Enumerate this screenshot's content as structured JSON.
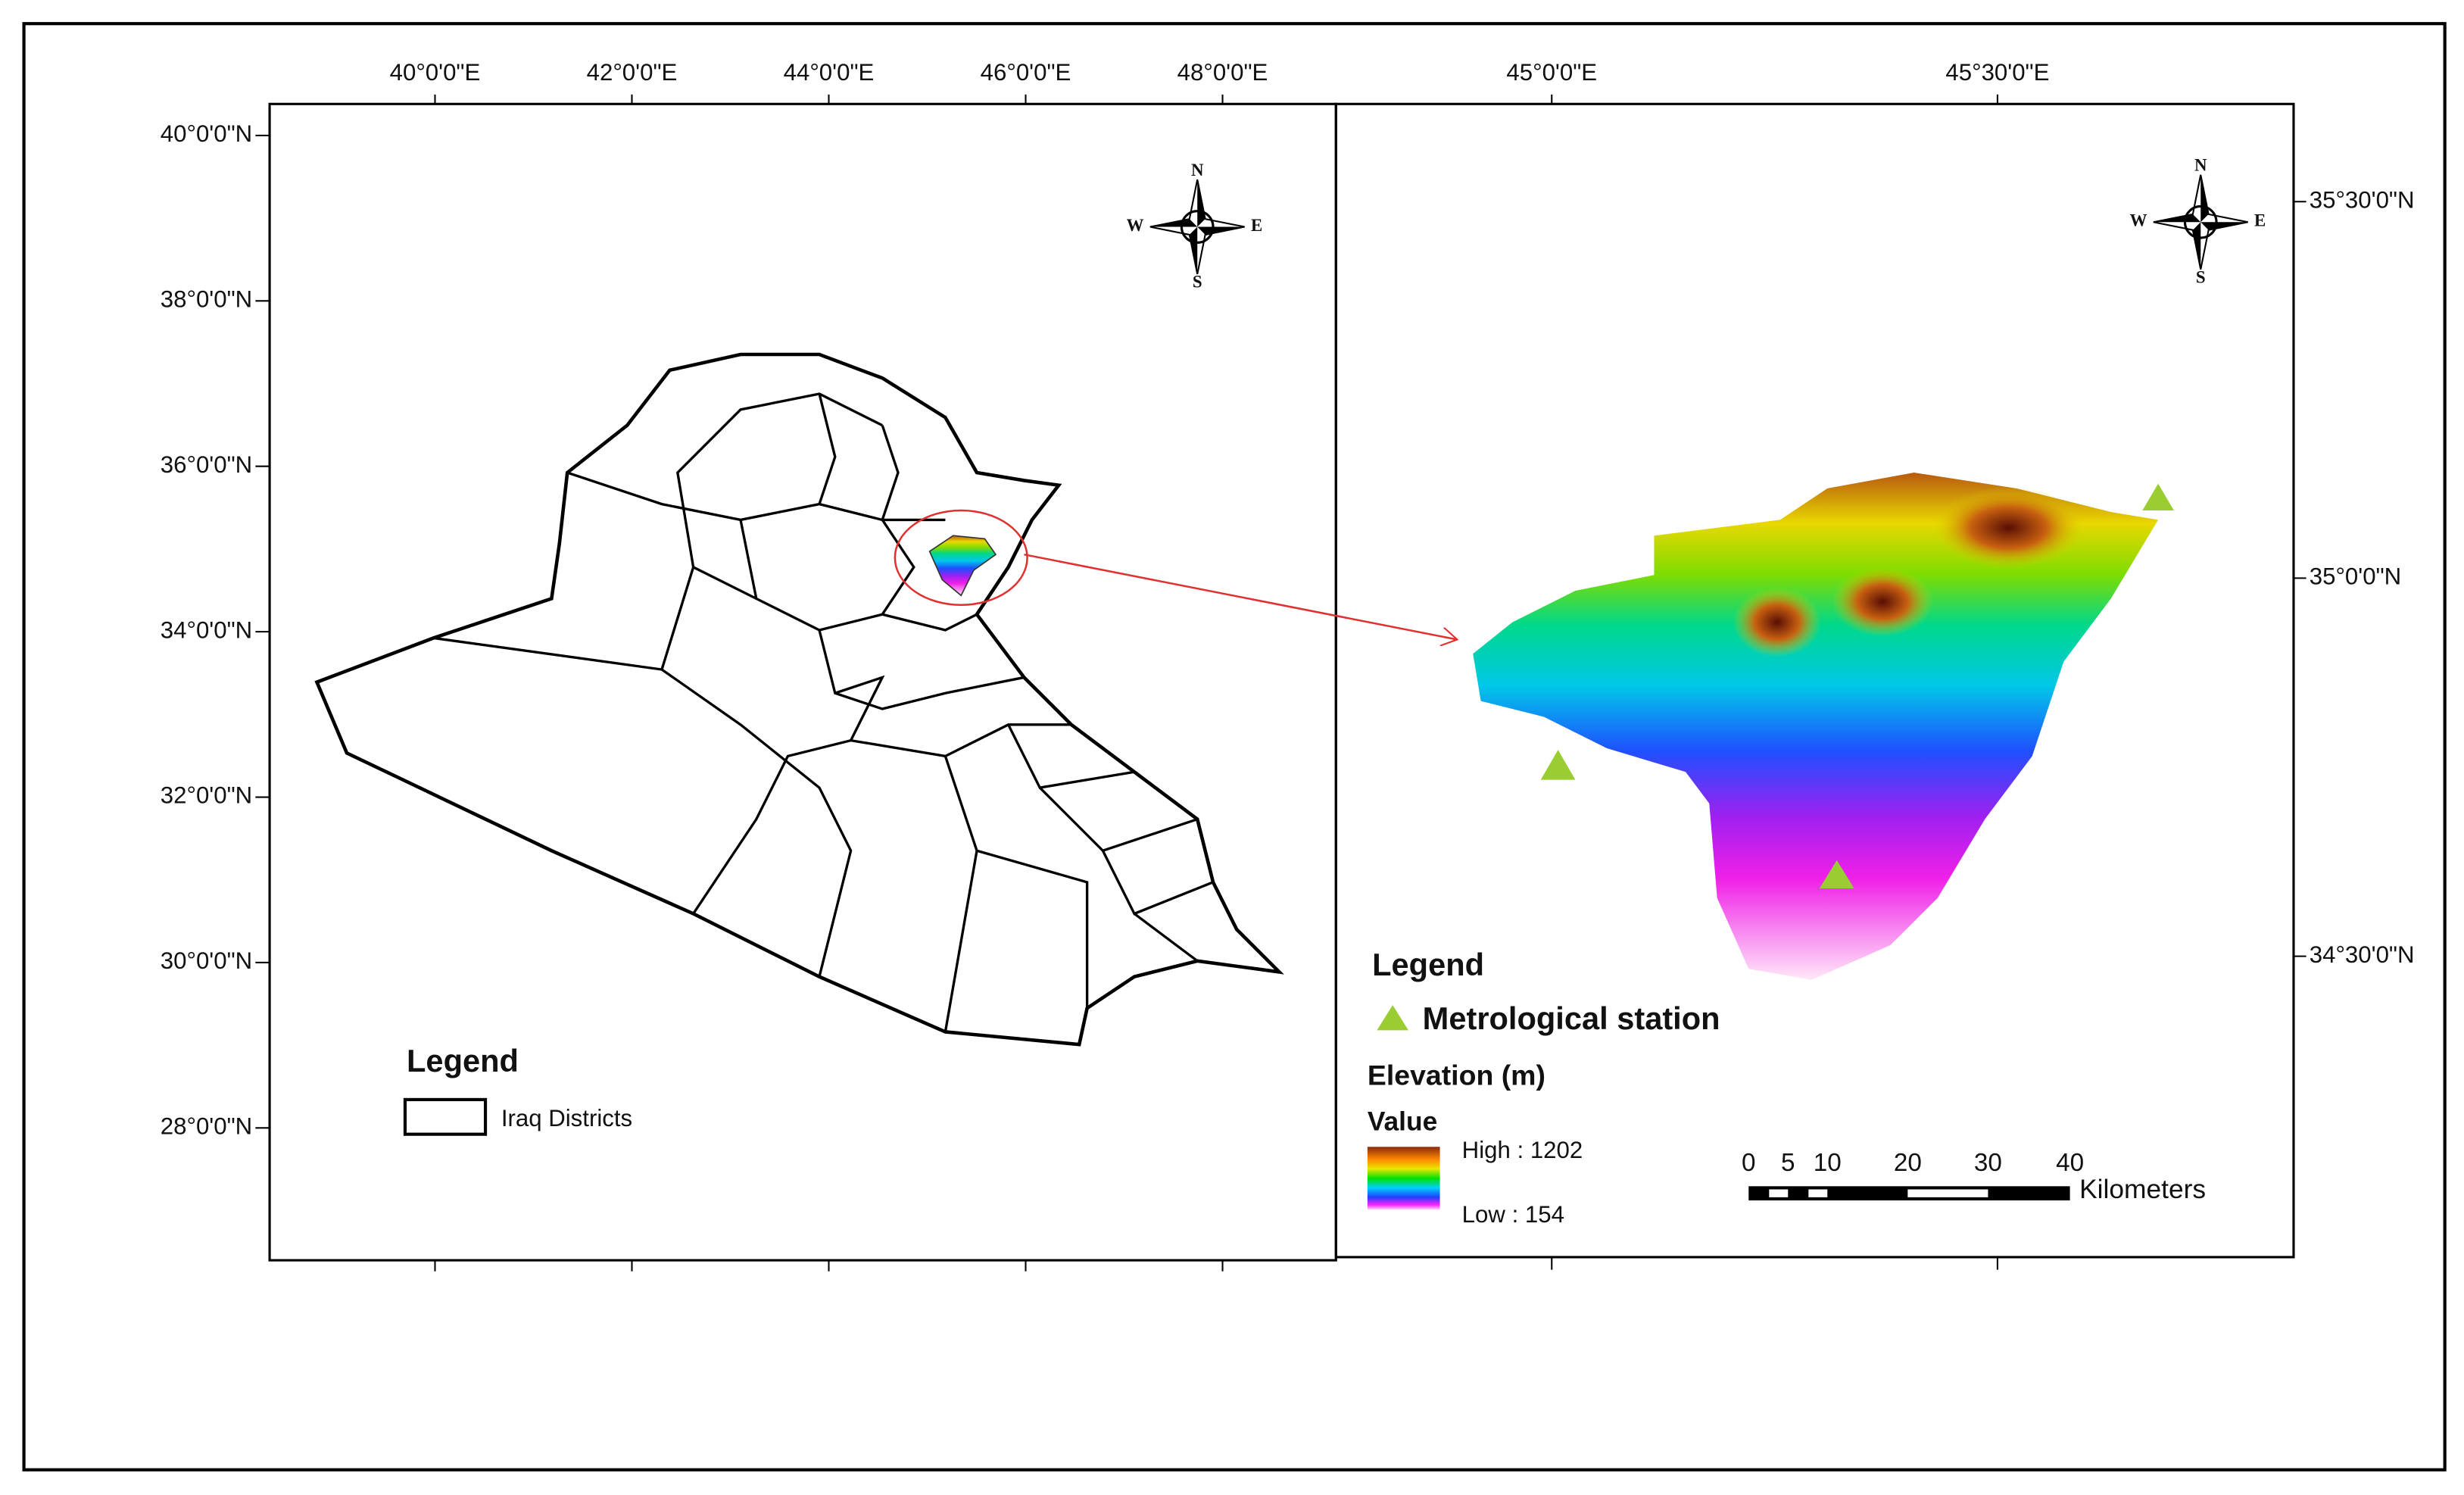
{
  "left_map": {
    "x_ticks": [
      "40°0'0\"E",
      "42°0'0\"E",
      "44°0'0\"E",
      "46°0'0\"E",
      "48°0'0\"E"
    ],
    "y_ticks": [
      "40°0'0\"N",
      "38°0'0\"N",
      "36°0'0\"N",
      "34°0'0\"N",
      "32°0'0\"N",
      "30°0'0\"N",
      "28°0'0\"N"
    ],
    "compass": {
      "n": "N",
      "s": "S",
      "e": "E",
      "w": "W"
    },
    "legend": {
      "title": "Legend",
      "item": "Iraq Districts"
    }
  },
  "right_map": {
    "x_ticks": [
      "45°0'0\"E",
      "45°30'0\"E"
    ],
    "y_ticks": [
      "35°30'0\"N",
      "35°0'0\"N",
      "34°30'0\"N"
    ],
    "compass": {
      "n": "N",
      "s": "S",
      "e": "E",
      "w": "W"
    },
    "legend": {
      "title": "Legend",
      "station": "Metrological station",
      "elevation": "Elevation (m)",
      "value": "Value",
      "high": "High : 1202",
      "low": "Low : 154"
    },
    "scale_bar": {
      "labels": [
        "0",
        "5",
        "10",
        "20",
        "30",
        "40"
      ],
      "unit": "Kilometers"
    }
  }
}
